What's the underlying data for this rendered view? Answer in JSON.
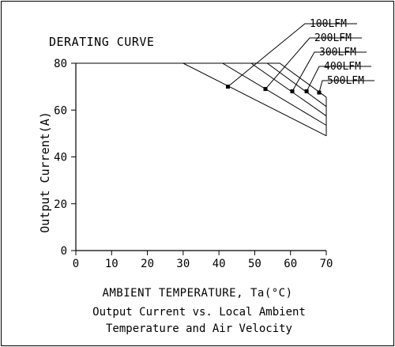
{
  "chart_data": {
    "type": "line",
    "title": "DERATING CURVE",
    "xlabel": "AMBIENT TEMPERATURE, Ta(°C)",
    "ylabel": "Output Current(A)",
    "xlim": [
      0,
      70
    ],
    "ylim": [
      0,
      80
    ],
    "x_ticks": [
      "0",
      "10",
      "20",
      "30",
      "40",
      "50",
      "60",
      "70"
    ],
    "y_ticks": [
      "0",
      "20",
      "40",
      "60",
      "80"
    ],
    "grid": false,
    "series": [
      {
        "name": "100LFM",
        "x": [
          0,
          30,
          70
        ],
        "y": [
          80,
          80,
          49
        ],
        "marker": [
          42.5,
          70
        ]
      },
      {
        "name": "200LFM",
        "x": [
          0,
          41,
          70
        ],
        "y": [
          80,
          80,
          53.5
        ],
        "marker": [
          53,
          69
        ]
      },
      {
        "name": "300LFM",
        "x": [
          0,
          49,
          70
        ],
        "y": [
          80,
          80,
          57.5
        ],
        "marker": [
          60.5,
          68
        ]
      },
      {
        "name": "400LFM",
        "x": [
          0,
          53.5,
          70
        ],
        "y": [
          80,
          80,
          61.5
        ],
        "marker": [
          64.5,
          68
        ]
      },
      {
        "name": "500LFM",
        "x": [
          0,
          57,
          70
        ],
        "y": [
          80,
          80,
          65.5
        ],
        "marker": [
          68,
          67.5
        ]
      }
    ],
    "caption": [
      "Output Current vs. Local Ambient",
      "Temperature and Air Velocity"
    ]
  }
}
